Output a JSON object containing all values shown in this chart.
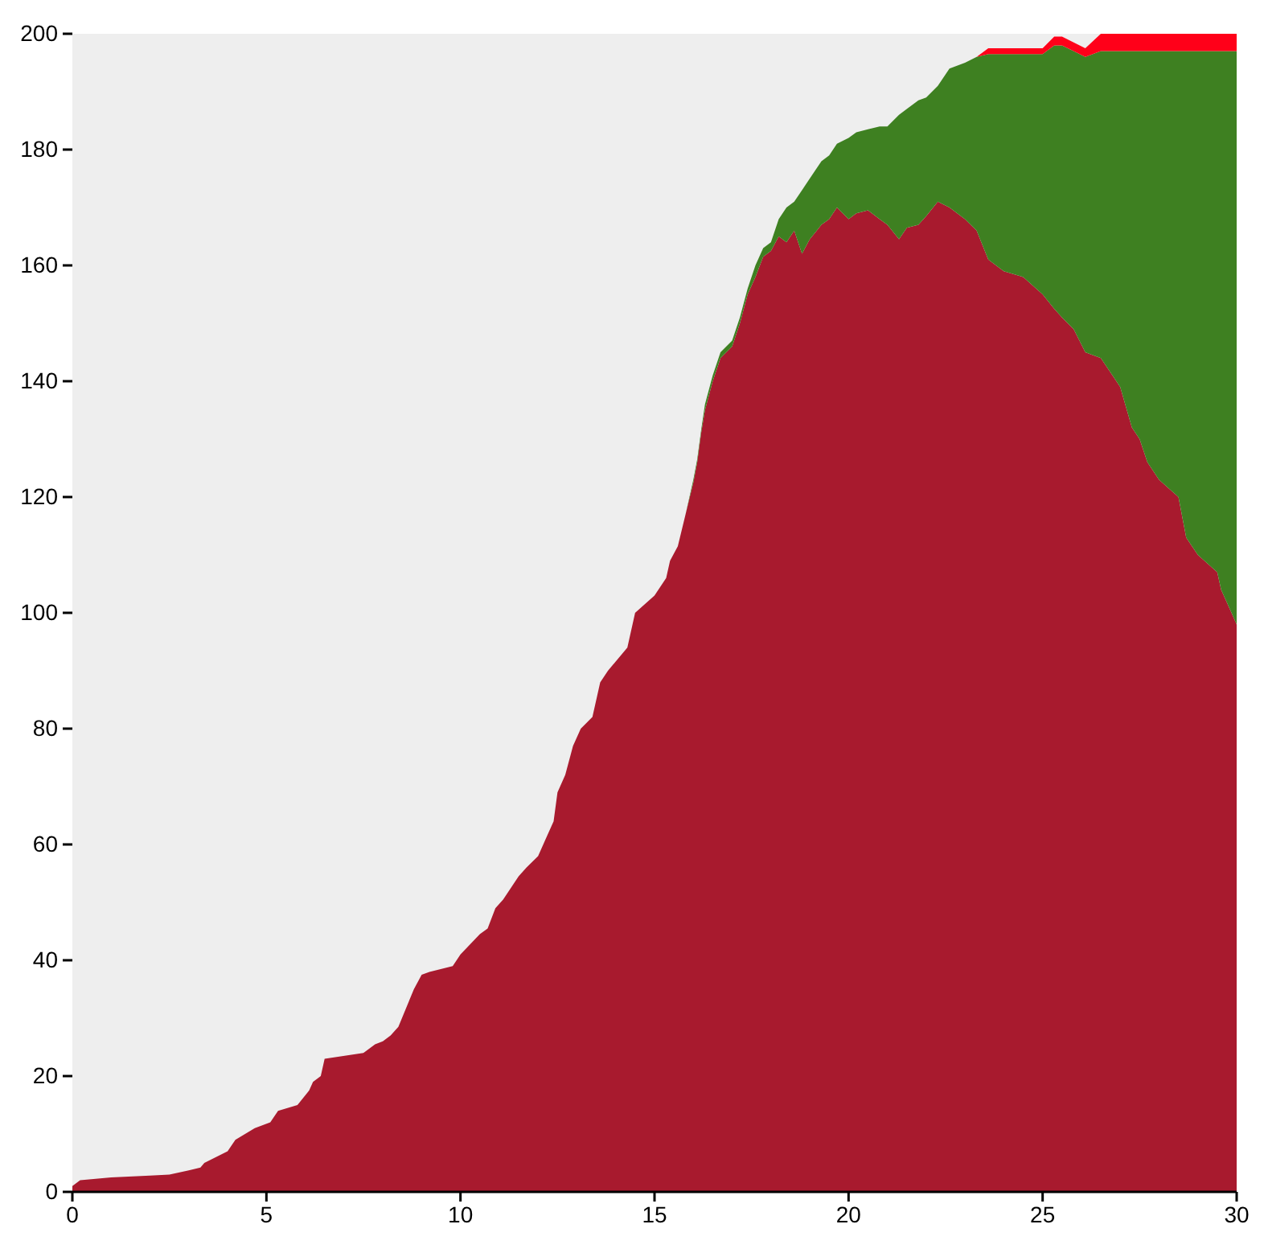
{
  "chart_data": {
    "type": "area",
    "stacked": true,
    "xlim": [
      0,
      30
    ],
    "ylim": [
      0,
      200
    ],
    "xticks": [
      0,
      5,
      10,
      15,
      20,
      25,
      30
    ],
    "yticks": [
      0,
      20,
      40,
      60,
      80,
      100,
      120,
      140,
      160,
      180,
      200
    ],
    "x": [
      0,
      0.2,
      1,
      2,
      2.5,
      3,
      3.3,
      3.4,
      4,
      4.2,
      4.7,
      5.1,
      5.3,
      5.8,
      6.1,
      6.2,
      6.4,
      6.5,
      7.5,
      7.8,
      8,
      8.2,
      8.4,
      8.8,
      9,
      9.2,
      9.8,
      10,
      10.5,
      10.7,
      10.9,
      11.1,
      11.5,
      11.7,
      12,
      12.2,
      12.4,
      12.5,
      12.7,
      12.9,
      13.1,
      13.4,
      13.6,
      13.8,
      14.3,
      14.5,
      15,
      15.3,
      15.4,
      15.6,
      15.8,
      16,
      16.1,
      16.2,
      16.3,
      16.5,
      16.7,
      17,
      17.2,
      17.4,
      17.6,
      17.8,
      18,
      18.2,
      18.4,
      18.6,
      18.8,
      19,
      19.3,
      19.5,
      19.7,
      20,
      20.2,
      20.5,
      20.8,
      21,
      21.3,
      21.5,
      21.8,
      22,
      22.3,
      22.6,
      23,
      23.3,
      23.6,
      24,
      24.5,
      25,
      25.3,
      25.5,
      25.8,
      26.1,
      26.5,
      26.8,
      27,
      27.3,
      27.5,
      27.7,
      28,
      28.5,
      28.7,
      29,
      29.5,
      29.6,
      30
    ],
    "series": [
      {
        "color": "#a81a2e",
        "values": [
          1,
          2,
          2.5,
          2.8,
          3,
          3.7,
          4.2,
          5,
          7,
          9,
          11,
          12,
          14,
          15,
          17.5,
          19,
          20,
          23,
          24,
          25.5,
          26,
          27,
          28.5,
          35,
          37.5,
          38,
          39,
          41,
          44.5,
          45.5,
          49,
          50.5,
          54.5,
          56,
          58,
          61,
          64,
          69,
          72,
          77,
          80,
          82,
          88,
          90,
          94,
          100,
          103,
          106,
          109,
          111.5,
          117,
          122.5,
          126,
          131,
          135,
          140,
          144,
          146,
          150,
          155,
          158,
          161.5,
          162.5,
          165,
          164,
          166,
          162,
          164.5,
          167,
          168,
          170,
          168,
          169,
          169.5,
          168,
          167,
          164.5,
          166.5,
          167,
          168.5,
          171,
          170,
          168,
          166,
          161,
          159,
          158,
          155,
          152.5,
          151,
          149,
          145,
          144,
          141,
          139,
          132,
          130,
          126,
          123,
          120,
          113,
          110,
          107,
          104,
          98
        ]
      },
      {
        "color": "#3e8021",
        "values": [
          0,
          0,
          0,
          0,
          0,
          0,
          0,
          0,
          0,
          0,
          0,
          0,
          0,
          0,
          0,
          0,
          0,
          0,
          0,
          0,
          0,
          0,
          0,
          0,
          0,
          0,
          0,
          0,
          0,
          0,
          0,
          0,
          0,
          0,
          0,
          0,
          0,
          0,
          0,
          0,
          0,
          0,
          0,
          0,
          0,
          0,
          0,
          0,
          0,
          0,
          0,
          0.5,
          0.5,
          0.5,
          1,
          1,
          1,
          1,
          1,
          1,
          2,
          1.5,
          1.5,
          3,
          6,
          5,
          11,
          10.5,
          11,
          11,
          11,
          14,
          14,
          14,
          16,
          17,
          21.5,
          20.5,
          21.5,
          20.5,
          20,
          24,
          27,
          30,
          35.5,
          37.5,
          38.5,
          41.5,
          45.5,
          47,
          48,
          51,
          53,
          56,
          58,
          65,
          67,
          71,
          74,
          77,
          84,
          87,
          90,
          93,
          99
        ]
      },
      {
        "color": "#ff0019",
        "values": [
          0,
          0,
          0,
          0,
          0,
          0,
          0,
          0,
          0,
          0,
          0,
          0,
          0,
          0,
          0,
          0,
          0,
          0,
          0,
          0,
          0,
          0,
          0,
          0,
          0,
          0,
          0,
          0,
          0,
          0,
          0,
          0,
          0,
          0,
          0,
          0,
          0,
          0,
          0,
          0,
          0,
          0,
          0,
          0,
          0,
          0,
          0,
          0,
          0,
          0,
          0,
          0,
          0,
          0,
          0,
          0,
          0,
          0,
          0,
          0,
          0,
          0,
          0,
          0,
          0,
          0,
          0,
          0,
          0,
          0,
          0,
          0,
          0,
          0,
          0,
          0,
          0,
          0,
          0,
          0,
          0,
          0,
          0,
          0,
          1,
          1,
          1,
          1,
          1.5,
          1.5,
          1.5,
          1.5,
          3,
          3,
          3,
          3,
          3,
          3,
          3,
          3,
          3,
          3,
          3,
          3,
          3
        ]
      }
    ]
  }
}
